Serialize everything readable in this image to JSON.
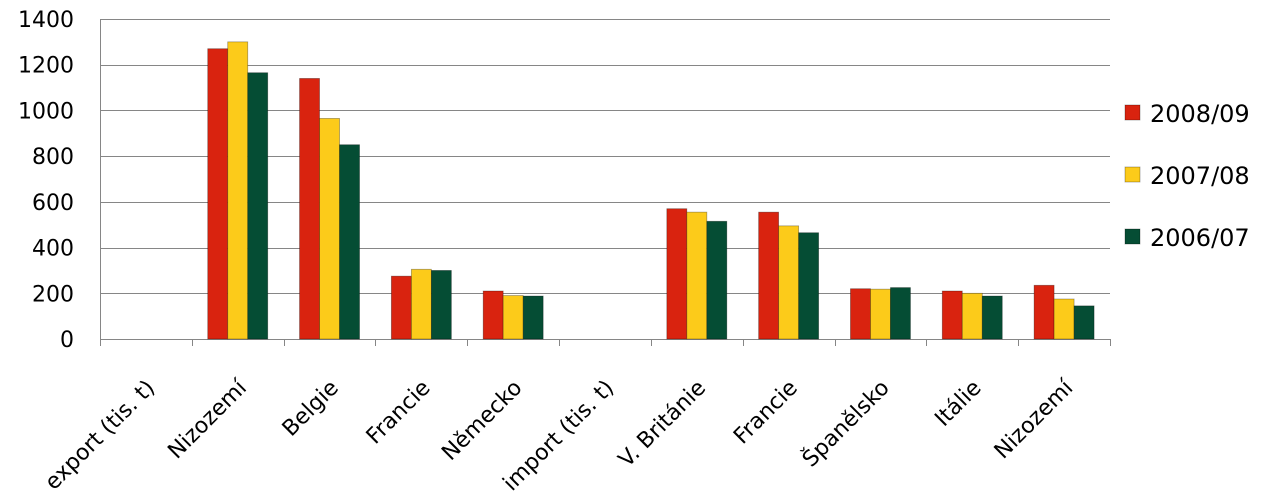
{
  "chart_data": {
    "type": "bar",
    "title": "",
    "xlabel": "",
    "ylabel": "",
    "ylim": [
      0,
      1400
    ],
    "yticks": [
      0,
      200,
      400,
      600,
      800,
      1000,
      1200,
      1400
    ],
    "grid": true,
    "legend_position": "right",
    "categories": [
      "export (tis. t)",
      "Nizozemí",
      "Belgie",
      "Francie",
      "Německo",
      "import (tis. t)",
      "V. Británie",
      "Francie",
      "Španělsko",
      "Itálie",
      "Nizozemí"
    ],
    "series": [
      {
        "name": "2008/09",
        "color": "#d9230f",
        "values": [
          null,
          1270,
          1140,
          275,
          210,
          null,
          570,
          555,
          220,
          210,
          235
        ]
      },
      {
        "name": "2007/08",
        "color": "#fccb1a",
        "values": [
          null,
          1300,
          965,
          305,
          190,
          null,
          555,
          495,
          218,
          200,
          175
        ]
      },
      {
        "name": "2006/07",
        "color": "#054d34",
        "values": [
          null,
          1165,
          850,
          300,
          188,
          null,
          515,
          465,
          225,
          188,
          145
        ]
      }
    ]
  }
}
